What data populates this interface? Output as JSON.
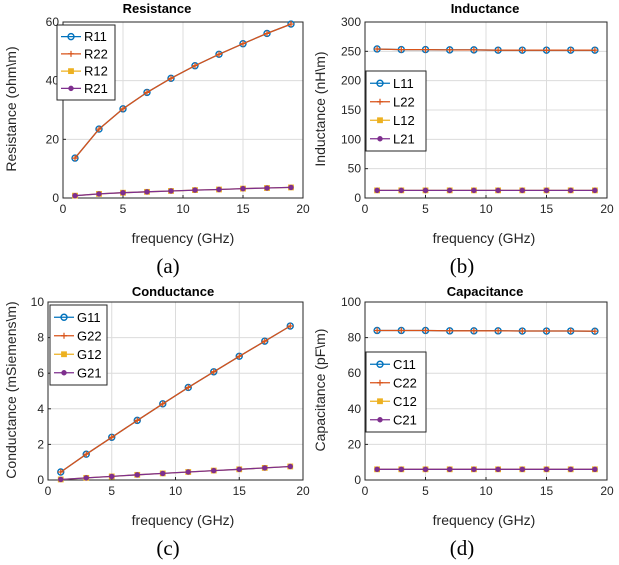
{
  "chart_data": [
    {
      "id": "a",
      "type": "line",
      "title": "Resistance",
      "caption": "(a)",
      "xlabel": "frequency (GHz)",
      "ylabel": "Resistance (ohm\\m)",
      "xlim": [
        0,
        20
      ],
      "ylim": [
        0,
        60
      ],
      "xticks": [
        0,
        5,
        10,
        15,
        20
      ],
      "yticks": [
        0,
        20,
        40,
        60
      ],
      "grid": true,
      "legend_position": "top-left",
      "x": [
        1,
        3,
        5,
        7,
        9,
        11,
        13,
        15,
        17,
        19
      ],
      "series": [
        {
          "name": "R11",
          "color": "#0072BD",
          "marker": "circle",
          "values": [
            13.6,
            23.5,
            30.4,
            36.0,
            40.8,
            45.1,
            49.0,
            52.6,
            56.1,
            59.3
          ]
        },
        {
          "name": "R22",
          "color": "#D95319",
          "marker": "plus",
          "values": [
            13.6,
            23.5,
            30.4,
            36.0,
            40.8,
            45.1,
            49.0,
            52.6,
            56.1,
            59.3
          ]
        },
        {
          "name": "R12",
          "color": "#EDB120",
          "marker": "square",
          "values": [
            0.8,
            1.4,
            1.8,
            2.1,
            2.4,
            2.7,
            2.9,
            3.2,
            3.4,
            3.6
          ]
        },
        {
          "name": "R21",
          "color": "#7E2F8E",
          "marker": "dot",
          "values": [
            0.8,
            1.4,
            1.8,
            2.1,
            2.4,
            2.7,
            2.9,
            3.2,
            3.4,
            3.6
          ]
        }
      ]
    },
    {
      "id": "b",
      "type": "line",
      "title": "Inductance",
      "caption": "(b)",
      "xlabel": "frequency (GHz)",
      "ylabel": "Inductance (nH\\m)",
      "xlim": [
        0,
        20
      ],
      "ylim": [
        0,
        300
      ],
      "xticks": [
        0,
        5,
        10,
        15,
        20
      ],
      "yticks": [
        0,
        50,
        100,
        150,
        200,
        250,
        300
      ],
      "grid": true,
      "legend_position": "middle-left",
      "x": [
        1,
        3,
        5,
        7,
        9,
        11,
        13,
        15,
        17,
        19
      ],
      "series": [
        {
          "name": "L11",
          "color": "#0072BD",
          "marker": "circle",
          "values": [
            254,
            253,
            253,
            252.5,
            252.5,
            252,
            252,
            252,
            252,
            252
          ]
        },
        {
          "name": "L22",
          "color": "#D95319",
          "marker": "plus",
          "values": [
            254,
            253,
            253,
            252.5,
            252.5,
            252,
            252,
            252,
            252,
            252
          ]
        },
        {
          "name": "L12",
          "color": "#EDB120",
          "marker": "square",
          "values": [
            13,
            13,
            13,
            13,
            13,
            13,
            13,
            13,
            13,
            13
          ]
        },
        {
          "name": "L21",
          "color": "#7E2F8E",
          "marker": "dot",
          "values": [
            13,
            13,
            13,
            13,
            13,
            13,
            13,
            13,
            13,
            13
          ]
        }
      ]
    },
    {
      "id": "c",
      "type": "line",
      "title": "Conductance",
      "caption": "(c)",
      "xlabel": "frequency (GHz)",
      "ylabel": "Conductance (mSiemens\\m)",
      "xlim": [
        0,
        20
      ],
      "ylim": [
        0,
        10
      ],
      "xticks": [
        0,
        5,
        10,
        15,
        20
      ],
      "yticks": [
        0,
        2,
        4,
        6,
        8,
        10
      ],
      "grid": true,
      "legend_position": "top-left",
      "x": [
        1,
        3,
        5,
        7,
        9,
        11,
        13,
        15,
        17,
        19
      ],
      "series": [
        {
          "name": "G11",
          "color": "#0072BD",
          "marker": "circle",
          "values": [
            0.45,
            1.45,
            2.4,
            3.35,
            4.28,
            5.2,
            6.08,
            6.95,
            7.8,
            8.65
          ]
        },
        {
          "name": "G22",
          "color": "#D95319",
          "marker": "plus",
          "values": [
            0.45,
            1.45,
            2.4,
            3.35,
            4.28,
            5.2,
            6.08,
            6.95,
            7.8,
            8.65
          ]
        },
        {
          "name": "G12",
          "color": "#EDB120",
          "marker": "square",
          "values": [
            0.03,
            0.12,
            0.2,
            0.29,
            0.37,
            0.45,
            0.53,
            0.6,
            0.68,
            0.76
          ]
        },
        {
          "name": "G21",
          "color": "#7E2F8E",
          "marker": "dot",
          "values": [
            0.03,
            0.12,
            0.2,
            0.29,
            0.37,
            0.45,
            0.53,
            0.6,
            0.68,
            0.76
          ]
        }
      ]
    },
    {
      "id": "d",
      "type": "line",
      "title": "Capacitance",
      "caption": "(d)",
      "xlabel": "frequency (GHz)",
      "ylabel": "Capacitance (pF\\m)",
      "xlim": [
        0,
        20
      ],
      "ylim": [
        0,
        100
      ],
      "xticks": [
        0,
        5,
        10,
        15,
        20
      ],
      "yticks": [
        0,
        20,
        40,
        60,
        80,
        100
      ],
      "grid": true,
      "legend_position": "middle-left",
      "x": [
        1,
        3,
        5,
        7,
        9,
        11,
        13,
        15,
        17,
        19
      ],
      "series": [
        {
          "name": "C11",
          "color": "#0072BD",
          "marker": "circle",
          "values": [
            84,
            84,
            84,
            83.8,
            83.8,
            83.8,
            83.7,
            83.7,
            83.7,
            83.6
          ]
        },
        {
          "name": "C22",
          "color": "#D95319",
          "marker": "plus",
          "values": [
            84,
            84,
            84,
            83.8,
            83.8,
            83.8,
            83.7,
            83.7,
            83.7,
            83.6
          ]
        },
        {
          "name": "C12",
          "color": "#EDB120",
          "marker": "square",
          "values": [
            6,
            6,
            6,
            6,
            6,
            6,
            6,
            6,
            6,
            6
          ]
        },
        {
          "name": "C21",
          "color": "#7E2F8E",
          "marker": "dot",
          "values": [
            6,
            6,
            6,
            6,
            6,
            6,
            6,
            6,
            6,
            6
          ]
        }
      ]
    }
  ]
}
